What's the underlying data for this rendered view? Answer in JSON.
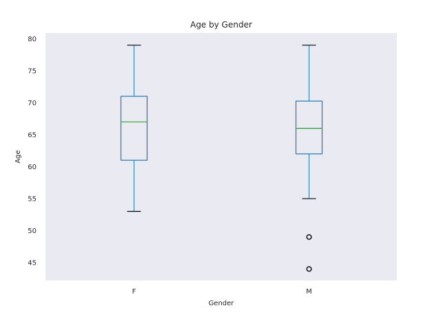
{
  "chart_data": {
    "type": "box",
    "title": "Age by Gender",
    "xlabel": "Gender",
    "ylabel": "Age",
    "categories": [
      "F",
      "M"
    ],
    "ylim": [
      42.2,
      80.9
    ],
    "yticks": [
      45,
      50,
      55,
      60,
      65,
      70,
      75,
      80
    ],
    "grid": false,
    "boxes": [
      {
        "category": "F",
        "whisker_low": 53,
        "q1": 61,
        "median": 67,
        "q3": 71,
        "whisker_high": 79,
        "outliers": []
      },
      {
        "category": "M",
        "whisker_low": 55,
        "q1": 62,
        "median": 66,
        "q3": 70.25,
        "whisker_high": 79,
        "outliers": [
          49,
          44
        ]
      }
    ],
    "colors": {
      "box": "#1f77b4",
      "median": "#2ca02c",
      "whisker": "#1f77b4",
      "cap": "#000000",
      "outlier": "#000000",
      "background": "#eaeaf2"
    }
  }
}
